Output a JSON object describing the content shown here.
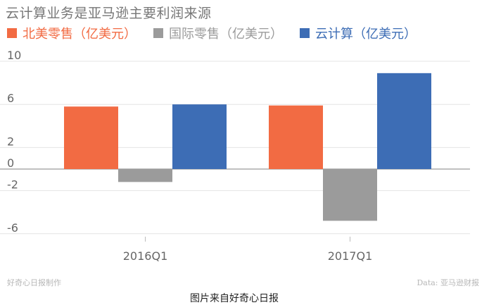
{
  "chart_data": {
    "type": "bar",
    "title": "云计算业务是亚马逊主要利润来源",
    "categories": [
      "2016Q1",
      "2017Q1"
    ],
    "series": [
      {
        "name": "北美零售（亿美元）",
        "color": "#f26b43",
        "values": [
          5.8,
          5.9
        ]
      },
      {
        "name": "国际零售（亿美元）",
        "color": "#9b9b9b",
        "values": [
          -1.2,
          -4.8
        ]
      },
      {
        "name": "云计算（亿美元）",
        "color": "#3d6db5",
        "values": [
          6.0,
          8.9
        ]
      }
    ],
    "yticks": [
      10,
      6,
      2,
      0,
      -2,
      -6
    ],
    "ylim": [
      -6.3,
      10
    ],
    "grid": true,
    "legend_position": "top"
  },
  "footer": {
    "left": "好奇心日报制作",
    "right": "Data: 亚马逊财报"
  },
  "caption": "图片来自好奇心日报"
}
